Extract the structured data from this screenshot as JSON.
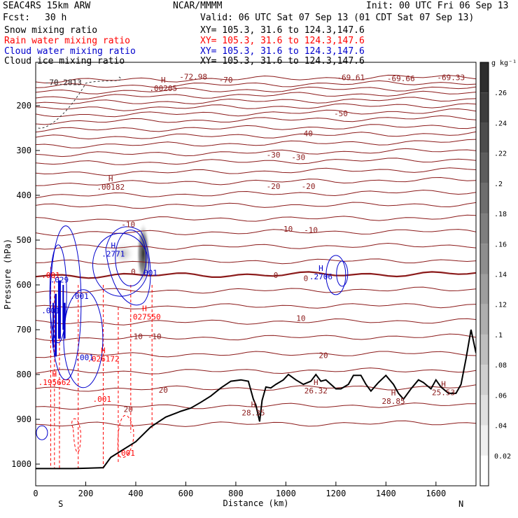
{
  "header": {
    "model": "SEAC4RS 15km ARW",
    "org": "NCAR/MMMM",
    "init": "Init: 00 UTC Fri 06 Sep 13",
    "fcst_label": "Fcst:",
    "fcst_value": "30 h",
    "valid": "Valid: 06 UTC Sat 07 Sep 13 (01 CDT Sat 07 Sep 13)"
  },
  "fields": [
    {
      "name": "Snow mixing ratio",
      "xy": "",
      "color": "#000000"
    },
    {
      "name": "Rain water mixing ratio",
      "xy": "XY= 105.3, 31.6 to 124.3,147.6",
      "color": "#ff0000"
    },
    {
      "name": "Cloud water mixing ratio",
      "xy": "XY= 105.3, 31.6 to 124.3,147.6",
      "color": "#0000cc"
    },
    {
      "name": "Cloud ice mixing ratio",
      "xy": "XY= 105.3, 31.6 to 124.3,147.6",
      "color": "#000000"
    }
  ],
  "snow_xy": "XY= 105.3, 31.6 to 124.3,147.6",
  "chart_data": {
    "type": "contour",
    "xlabel": "Distance (km)",
    "ylabel": "Pressure (hPa)",
    "xlim": [
      0,
      1760
    ],
    "ylim": [
      1050,
      125
    ],
    "x_ticks": [
      0,
      200,
      400,
      600,
      800,
      1000,
      1200,
      1400,
      1600
    ],
    "y_ticks": [
      200,
      300,
      400,
      500,
      600,
      700,
      800,
      900,
      1000
    ],
    "start_label": "S",
    "end_label": "N",
    "colorbar": {
      "unit": "g kg⁻¹",
      "ticks": [
        "0.02",
        ".04",
        ".06",
        ".08",
        ".1",
        ".12",
        ".14",
        ".16",
        ".18",
        ".2",
        ".22",
        ".24",
        ".26"
      ],
      "tick_values": [
        0.02,
        0.04,
        0.06,
        0.08,
        0.1,
        0.12,
        0.14,
        0.16,
        0.18,
        0.2,
        0.22,
        0.24,
        0.26
      ],
      "range": [
        0,
        0.28
      ]
    },
    "temperature_contours": {
      "color": "#8b1a1a",
      "labels": [
        {
          "text": "-70",
          "x": 760,
          "p": 142
        },
        {
          "text": "-72.98",
          "x": 630,
          "p": 135
        },
        {
          "text": "-69.61",
          "x": 1260,
          "p": 137
        },
        {
          "text": "-69.66",
          "x": 1460,
          "p": 139
        },
        {
          "text": "-69.33",
          "x": 1660,
          "p": 137
        },
        {
          "text": "-70.2813",
          "x": 110,
          "p": 148
        },
        {
          "text": "-50",
          "x": 1220,
          "p": 217
        },
        {
          "text": "-40",
          "x": 1080,
          "p": 262
        },
        {
          "text": "-30",
          "x": 950,
          "p": 309
        },
        {
          "text": "-30",
          "x": 1050,
          "p": 315
        },
        {
          "text": "-20",
          "x": 950,
          "p": 380
        },
        {
          "text": "-20",
          "x": 1090,
          "p": 380
        },
        {
          "text": "-10",
          "x": 370,
          "p": 465
        },
        {
          "text": "-10",
          "x": 1000,
          "p": 475
        },
        {
          "text": "-10",
          "x": 1100,
          "p": 477
        },
        {
          "text": "0",
          "x": 390,
          "p": 570
        },
        {
          "text": "0",
          "x": 960,
          "p": 578
        },
        {
          "text": "0",
          "x": 1080,
          "p": 585
        },
        {
          "text": "10",
          "x": 1060,
          "p": 674
        },
        {
          "text": "-10",
          "x": 400,
          "p": 715
        },
        {
          "text": "-10",
          "x": 475,
          "p": 715
        },
        {
          "text": "20",
          "x": 1150,
          "p": 757
        },
        {
          "text": "20",
          "x": 510,
          "p": 834
        },
        {
          "text": "20",
          "x": 370,
          "p": 877
        }
      ],
      "highs": [
        {
          "value": ".00205",
          "x": 510,
          "p": 158
        },
        {
          "value": ".00182",
          "x": 300,
          "p": 378
        },
        {
          "value": "26.32",
          "x": 1120,
          "p": 833
        },
        {
          "value": "28.85",
          "x": 1430,
          "p": 856
        },
        {
          "value": "25.53",
          "x": 1630,
          "p": 837
        },
        {
          "value": "28.35",
          "x": 870,
          "p": 882
        }
      ]
    },
    "rain_water": {
      "color": "#ff0000",
      "labels": [
        {
          "text": ".001",
          "x": 60,
          "p": 578
        },
        {
          "text": ".001",
          "x": 265,
          "p": 855
        },
        {
          "text": ".001",
          "x": 360,
          "p": 975
        }
      ],
      "highs": [
        {
          "value": ".027550",
          "x": 435,
          "p": 668
        },
        {
          "value": ".026172",
          "x": 270,
          "p": 762
        },
        {
          "value": ".195662",
          "x": 75,
          "p": 814
        }
      ]
    },
    "cloud_water": {
      "color": "#0000cc",
      "labels": [
        {
          "text": ".001",
          "x": 450,
          "p": 573
        },
        {
          "text": ".001",
          "x": 175,
          "p": 625
        },
        {
          "text": ".001",
          "x": 60,
          "p": 657
        },
        {
          "text": ".001",
          "x": 195,
          "p": 762
        },
        {
          "text": ".029",
          "x": 95,
          "p": 588
        }
      ],
      "highs": [
        {
          "value": ".2771",
          "x": 310,
          "p": 527
        },
        {
          "value": ".2706",
          "x": 1140,
          "p": 578
        }
      ]
    },
    "cloud_ice": {
      "color": "#555555",
      "labels": [
        {
          "text": "-70.2813",
          "x": 110,
          "p": 148
        }
      ]
    },
    "terrain": {
      "x": [
        0,
        150,
        270,
        300,
        400,
        460,
        520,
        580,
        620,
        660,
        700,
        740,
        780,
        820,
        850,
        870,
        880,
        895,
        905,
        920,
        940,
        960,
        990,
        1010,
        1040,
        1070,
        1100,
        1120,
        1140,
        1160,
        1180,
        1200,
        1220,
        1250,
        1270,
        1300,
        1320,
        1340,
        1370,
        1400,
        1430,
        1450,
        1470,
        1500,
        1530,
        1550,
        1580,
        1600,
        1620,
        1650,
        1680,
        1700,
        1720,
        1740,
        1760
      ],
      "p": [
        1010,
        1010,
        1008,
        985,
        950,
        917,
        895,
        882,
        875,
        862,
        848,
        830,
        815,
        812,
        815,
        855,
        868,
        905,
        858,
        828,
        830,
        822,
        812,
        800,
        812,
        822,
        815,
        800,
        815,
        812,
        822,
        832,
        832,
        822,
        802,
        802,
        822,
        837,
        818,
        802,
        822,
        842,
        855,
        832,
        812,
        818,
        832,
        812,
        828,
        842,
        842,
        822,
        765,
        700,
        752
      ]
    }
  }
}
